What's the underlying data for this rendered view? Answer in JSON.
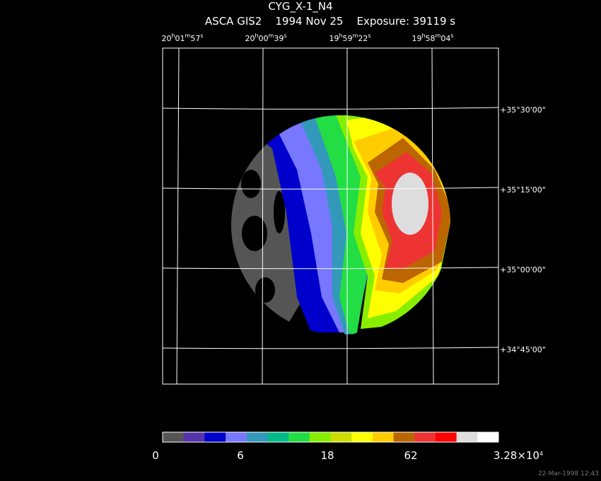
{
  "header": {
    "title": "CYG_X-1_N4",
    "subtitle": "ASCA GIS2    1994 Nov 25    Exposure: 39119 s"
  },
  "ra_labels": [
    [
      "20",
      "h",
      "01",
      "m",
      "57",
      "s"
    ],
    [
      "20",
      "h",
      "00",
      "m",
      "39",
      "s"
    ],
    [
      "19",
      "h",
      "59",
      "m",
      "22",
      "s"
    ],
    [
      "19",
      "h",
      "58",
      "m",
      "04",
      "s"
    ]
  ],
  "dec_labels": [
    "+35°30'00\"",
    "+35°15'00\"",
    "+35°00'00\"",
    "+34°45'00\""
  ],
  "colorbar": {
    "colors": [
      "#555555",
      "#5533aa",
      "#0000cc",
      "#7777ff",
      "#3399bb",
      "#00bb88",
      "#22dd44",
      "#88ee00",
      "#ccdd00",
      "#ffff00",
      "#ffcc00",
      "#bb6600",
      "#ee3333",
      "#ff0000",
      "#dddddd",
      "#ffffff"
    ],
    "labels": [
      [
        "0"
      ],
      [
        "6"
      ],
      [
        "18"
      ],
      [
        "62"
      ],
      [
        "3.28×10",
        "4"
      ]
    ]
  },
  "footer": {
    "timestamp": "22-Mar-1998 12:43"
  }
}
